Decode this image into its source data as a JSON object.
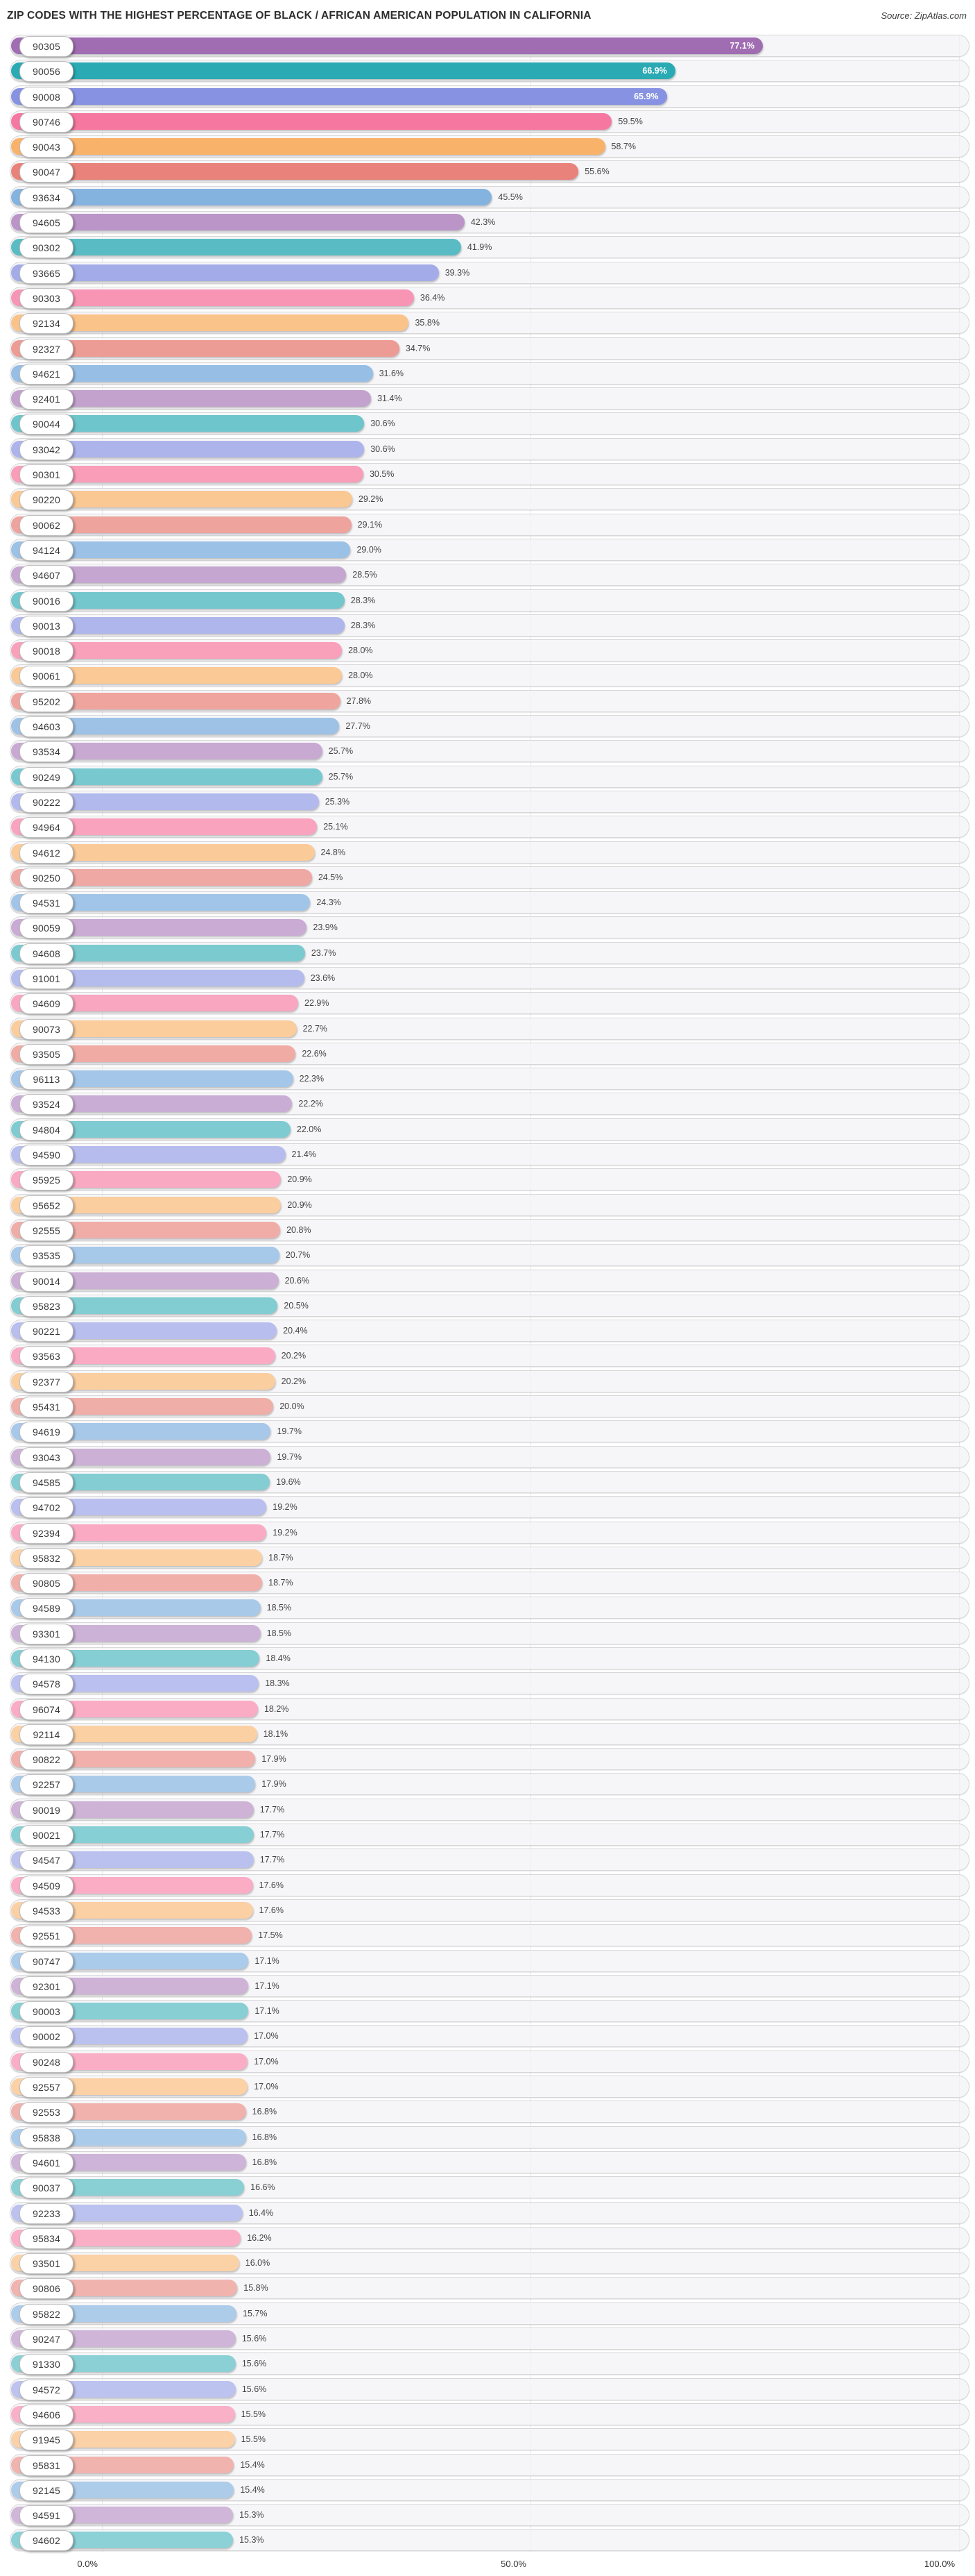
{
  "header": {
    "source_note": "Source: ZipAtlas.com"
  },
  "colors": {
    "purple": "#a06cb2",
    "teal": "#17a2ac",
    "periwinkle": "#7b87e0",
    "pink": "#f5618f",
    "orange": "#f7a54f",
    "salmon": "#e4685e",
    "sky": "#5b99d6",
    "track_bg": "#f3f3f5",
    "pill_bg": "#ffffff",
    "label_dark": "#454545",
    "label_light": "#ffffff"
  },
  "chart_data": {
    "type": "bar",
    "orientation": "horizontal",
    "title": "ZIP CODES WITH THE HIGHEST PERCENTAGE OF BLACK / AFRICAN AMERICAN POPULATION IN CALIFORNIA",
    "source": "Source: ZipAtlas.com",
    "value_suffix": "%",
    "x_axis": {
      "min": 0,
      "max": 100,
      "tick_labels": [
        "0.0%",
        "50.0%",
        "100.0%"
      ],
      "tick_values": [
        0,
        50,
        100
      ],
      "grid": true
    },
    "legend": null,
    "rows": [
      {
        "zip": "90305",
        "value": 77.1,
        "color": "purple"
      },
      {
        "zip": "90056",
        "value": 66.9,
        "color": "teal"
      },
      {
        "zip": "90008",
        "value": 65.9,
        "color": "periwinkle"
      },
      {
        "zip": "90746",
        "value": 59.5,
        "color": "pink"
      },
      {
        "zip": "90043",
        "value": 58.7,
        "color": "orange"
      },
      {
        "zip": "90047",
        "value": 55.6,
        "color": "salmon"
      },
      {
        "zip": "93634",
        "value": 45.5,
        "color": "sky"
      },
      {
        "zip": "94605",
        "value": 42.3,
        "color": "purple"
      },
      {
        "zip": "90302",
        "value": 41.9,
        "color": "teal"
      },
      {
        "zip": "93665",
        "value": 39.3,
        "color": "periwinkle"
      },
      {
        "zip": "90303",
        "value": 36.4,
        "color": "pink"
      },
      {
        "zip": "92134",
        "value": 35.8,
        "color": "orange"
      },
      {
        "zip": "92327",
        "value": 34.7,
        "color": "salmon"
      },
      {
        "zip": "94621",
        "value": 31.6,
        "color": "sky"
      },
      {
        "zip": "92401",
        "value": 31.4,
        "color": "purple"
      },
      {
        "zip": "90044",
        "value": 30.6,
        "color": "teal"
      },
      {
        "zip": "93042",
        "value": 30.6,
        "color": "periwinkle"
      },
      {
        "zip": "90301",
        "value": 30.5,
        "color": "pink"
      },
      {
        "zip": "90220",
        "value": 29.2,
        "color": "orange"
      },
      {
        "zip": "90062",
        "value": 29.1,
        "color": "salmon"
      },
      {
        "zip": "94124",
        "value": 29.0,
        "color": "sky"
      },
      {
        "zip": "94607",
        "value": 28.5,
        "color": "purple"
      },
      {
        "zip": "90016",
        "value": 28.3,
        "color": "teal"
      },
      {
        "zip": "90013",
        "value": 28.3,
        "color": "periwinkle"
      },
      {
        "zip": "90018",
        "value": 28.0,
        "color": "pink"
      },
      {
        "zip": "90061",
        "value": 28.0,
        "color": "orange"
      },
      {
        "zip": "95202",
        "value": 27.8,
        "color": "salmon"
      },
      {
        "zip": "94603",
        "value": 27.7,
        "color": "sky"
      },
      {
        "zip": "93534",
        "value": 25.7,
        "color": "purple"
      },
      {
        "zip": "90249",
        "value": 25.7,
        "color": "teal"
      },
      {
        "zip": "90222",
        "value": 25.3,
        "color": "periwinkle"
      },
      {
        "zip": "94964",
        "value": 25.1,
        "color": "pink"
      },
      {
        "zip": "94612",
        "value": 24.8,
        "color": "orange"
      },
      {
        "zip": "90250",
        "value": 24.5,
        "color": "salmon"
      },
      {
        "zip": "94531",
        "value": 24.3,
        "color": "sky"
      },
      {
        "zip": "90059",
        "value": 23.9,
        "color": "purple"
      },
      {
        "zip": "94608",
        "value": 23.7,
        "color": "teal"
      },
      {
        "zip": "91001",
        "value": 23.6,
        "color": "periwinkle"
      },
      {
        "zip": "94609",
        "value": 22.9,
        "color": "pink"
      },
      {
        "zip": "90073",
        "value": 22.7,
        "color": "orange"
      },
      {
        "zip": "93505",
        "value": 22.6,
        "color": "salmon"
      },
      {
        "zip": "96113",
        "value": 22.3,
        "color": "sky"
      },
      {
        "zip": "93524",
        "value": 22.2,
        "color": "purple"
      },
      {
        "zip": "94804",
        "value": 22.0,
        "color": "teal"
      },
      {
        "zip": "94590",
        "value": 21.4,
        "color": "periwinkle"
      },
      {
        "zip": "95925",
        "value": 20.9,
        "color": "pink"
      },
      {
        "zip": "95652",
        "value": 20.9,
        "color": "orange"
      },
      {
        "zip": "92555",
        "value": 20.8,
        "color": "salmon"
      },
      {
        "zip": "93535",
        "value": 20.7,
        "color": "sky"
      },
      {
        "zip": "90014",
        "value": 20.6,
        "color": "purple"
      },
      {
        "zip": "95823",
        "value": 20.5,
        "color": "teal"
      },
      {
        "zip": "90221",
        "value": 20.4,
        "color": "periwinkle"
      },
      {
        "zip": "93563",
        "value": 20.2,
        "color": "pink"
      },
      {
        "zip": "92377",
        "value": 20.2,
        "color": "orange"
      },
      {
        "zip": "95431",
        "value": 20.0,
        "color": "salmon"
      },
      {
        "zip": "94619",
        "value": 19.7,
        "color": "sky"
      },
      {
        "zip": "93043",
        "value": 19.7,
        "color": "purple"
      },
      {
        "zip": "94585",
        "value": 19.6,
        "color": "teal"
      },
      {
        "zip": "94702",
        "value": 19.2,
        "color": "periwinkle"
      },
      {
        "zip": "92394",
        "value": 19.2,
        "color": "pink"
      },
      {
        "zip": "95832",
        "value": 18.7,
        "color": "orange"
      },
      {
        "zip": "90805",
        "value": 18.7,
        "color": "salmon"
      },
      {
        "zip": "94589",
        "value": 18.5,
        "color": "sky"
      },
      {
        "zip": "93301",
        "value": 18.5,
        "color": "purple"
      },
      {
        "zip": "94130",
        "value": 18.4,
        "color": "teal"
      },
      {
        "zip": "94578",
        "value": 18.3,
        "color": "periwinkle"
      },
      {
        "zip": "96074",
        "value": 18.2,
        "color": "pink"
      },
      {
        "zip": "92114",
        "value": 18.1,
        "color": "orange"
      },
      {
        "zip": "90822",
        "value": 17.9,
        "color": "salmon"
      },
      {
        "zip": "92257",
        "value": 17.9,
        "color": "sky"
      },
      {
        "zip": "90019",
        "value": 17.7,
        "color": "purple"
      },
      {
        "zip": "90021",
        "value": 17.7,
        "color": "teal"
      },
      {
        "zip": "94547",
        "value": 17.7,
        "color": "periwinkle"
      },
      {
        "zip": "94509",
        "value": 17.6,
        "color": "pink"
      },
      {
        "zip": "94533",
        "value": 17.6,
        "color": "orange"
      },
      {
        "zip": "92551",
        "value": 17.5,
        "color": "salmon"
      },
      {
        "zip": "90747",
        "value": 17.1,
        "color": "sky"
      },
      {
        "zip": "92301",
        "value": 17.1,
        "color": "purple"
      },
      {
        "zip": "90003",
        "value": 17.1,
        "color": "teal"
      },
      {
        "zip": "90002",
        "value": 17.0,
        "color": "periwinkle"
      },
      {
        "zip": "90248",
        "value": 17.0,
        "color": "pink"
      },
      {
        "zip": "92557",
        "value": 17.0,
        "color": "orange"
      },
      {
        "zip": "92553",
        "value": 16.8,
        "color": "salmon"
      },
      {
        "zip": "95838",
        "value": 16.8,
        "color": "sky"
      },
      {
        "zip": "94601",
        "value": 16.8,
        "color": "purple"
      },
      {
        "zip": "90037",
        "value": 16.6,
        "color": "teal"
      },
      {
        "zip": "92233",
        "value": 16.4,
        "color": "periwinkle"
      },
      {
        "zip": "95834",
        "value": 16.2,
        "color": "pink"
      },
      {
        "zip": "93501",
        "value": 16.0,
        "color": "orange"
      },
      {
        "zip": "90806",
        "value": 15.8,
        "color": "salmon"
      },
      {
        "zip": "95822",
        "value": 15.7,
        "color": "sky"
      },
      {
        "zip": "90247",
        "value": 15.6,
        "color": "purple"
      },
      {
        "zip": "91330",
        "value": 15.6,
        "color": "teal"
      },
      {
        "zip": "94572",
        "value": 15.6,
        "color": "periwinkle"
      },
      {
        "zip": "94606",
        "value": 15.5,
        "color": "pink"
      },
      {
        "zip": "91945",
        "value": 15.5,
        "color": "orange"
      },
      {
        "zip": "95831",
        "value": 15.4,
        "color": "salmon"
      },
      {
        "zip": "92145",
        "value": 15.4,
        "color": "sky"
      },
      {
        "zip": "94591",
        "value": 15.3,
        "color": "purple"
      },
      {
        "zip": "94602",
        "value": 15.3,
        "color": "teal"
      }
    ]
  }
}
